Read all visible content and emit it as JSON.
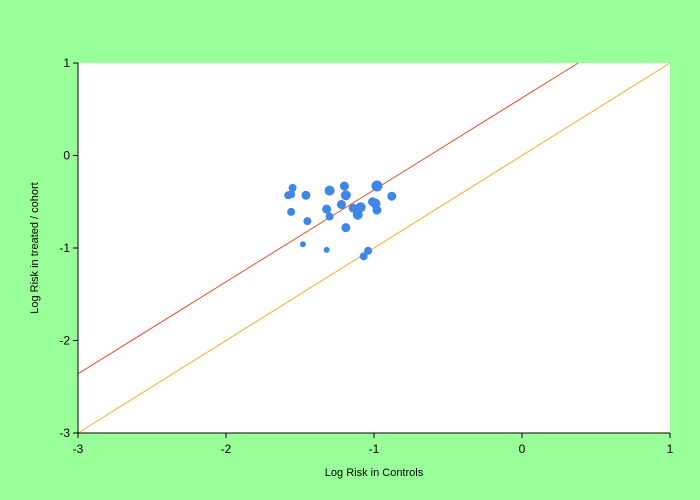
{
  "colors": {
    "background": "#99ff99",
    "plot_area": "#ffffff",
    "points": "#3f87e6",
    "line_upper": "#e0502e",
    "line_lower": "#f2b233",
    "axis": "#000000"
  },
  "chart_data": {
    "type": "scatter",
    "xlabel": "Log Risk in Controls",
    "ylabel": "Log Risk in treated / cohort",
    "xlim": [
      -3,
      1
    ],
    "ylim": [
      -3,
      1
    ],
    "xticks": [
      -3,
      -2,
      -1,
      0,
      1
    ],
    "yticks": [
      -3,
      -2,
      -1,
      0,
      1
    ],
    "grid": false,
    "points": [
      {
        "x": -1.58,
        "y": -0.43,
        "r": 4
      },
      {
        "x": -1.56,
        "y": -0.42,
        "r": 4
      },
      {
        "x": -1.55,
        "y": -0.35,
        "r": 4
      },
      {
        "x": -1.56,
        "y": -0.61,
        "r": 4
      },
      {
        "x": -1.46,
        "y": -0.43,
        "r": 4.5
      },
      {
        "x": -1.45,
        "y": -0.71,
        "r": 4
      },
      {
        "x": -1.48,
        "y": -0.96,
        "r": 3
      },
      {
        "x": -1.3,
        "y": -0.38,
        "r": 5
      },
      {
        "x": -1.32,
        "y": -0.58,
        "r": 4.5
      },
      {
        "x": -1.3,
        "y": -0.66,
        "r": 4
      },
      {
        "x": -1.32,
        "y": -1.02,
        "r": 3
      },
      {
        "x": -1.2,
        "y": -0.33,
        "r": 4.5
      },
      {
        "x": -1.19,
        "y": -0.43,
        "r": 5
      },
      {
        "x": -1.22,
        "y": -0.53,
        "r": 4.5
      },
      {
        "x": -1.19,
        "y": -0.78,
        "r": 4.5
      },
      {
        "x": -1.14,
        "y": -0.57,
        "r": 4.5
      },
      {
        "x": -1.11,
        "y": -0.64,
        "r": 5
      },
      {
        "x": -1.09,
        "y": -0.56,
        "r": 5
      },
      {
        "x": -1.07,
        "y": -1.09,
        "r": 4
      },
      {
        "x": -1.04,
        "y": -1.03,
        "r": 4
      },
      {
        "x": -1.01,
        "y": -0.5,
        "r": 4.5
      },
      {
        "x": -0.99,
        "y": -0.52,
        "r": 5
      },
      {
        "x": -0.98,
        "y": -0.59,
        "r": 4.5
      },
      {
        "x": -0.98,
        "y": -0.33,
        "r": 5.5
      },
      {
        "x": -0.88,
        "y": -0.44,
        "r": 4.5
      }
    ],
    "lines": [
      {
        "name": "upper",
        "color": "#e0502e",
        "points": [
          [
            -3,
            -2.36
          ],
          [
            0.38,
            1
          ]
        ]
      },
      {
        "name": "lower",
        "color": "#f2b233",
        "points": [
          [
            -3,
            -3
          ],
          [
            1,
            1
          ]
        ]
      }
    ]
  }
}
